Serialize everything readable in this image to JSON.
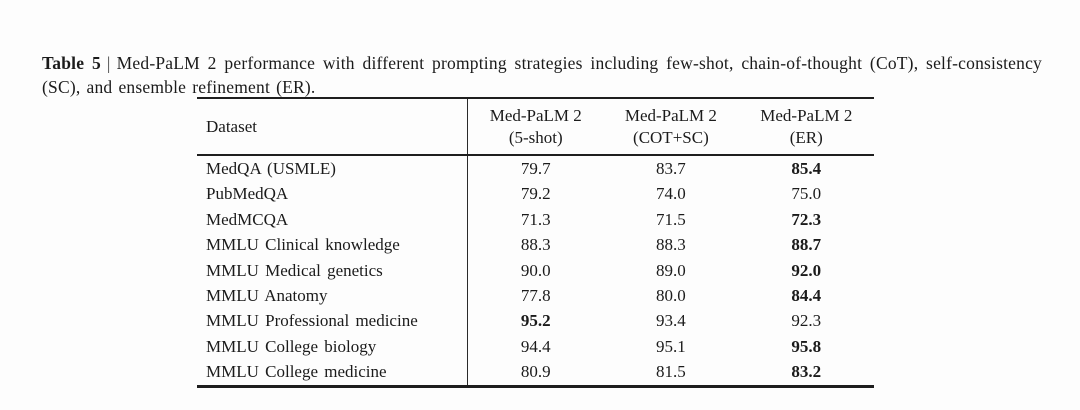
{
  "caption": {
    "label": "Table 5",
    "separator": "|",
    "text": "Med-PaLM 2 performance with different prompting strategies including few-shot, chain-of-thought (CoT), self-consistency (SC), and ensemble refinement (ER)."
  },
  "table": {
    "header": {
      "dataset_label": "Dataset",
      "columns": [
        {
          "line1": "Med-PaLM 2",
          "line2": "(5-shot)"
        },
        {
          "line1": "Med-PaLM 2",
          "line2": "(COT+SC)"
        },
        {
          "line1": "Med-PaLM 2",
          "line2": "(ER)"
        }
      ]
    },
    "rows": [
      {
        "dataset": "MedQA (USMLE)",
        "values": [
          {
            "text": "79.7",
            "bold": false
          },
          {
            "text": "83.7",
            "bold": false
          },
          {
            "text": "85.4",
            "bold": true
          }
        ]
      },
      {
        "dataset": "PubMedQA",
        "values": [
          {
            "text": "79.2",
            "bold": false
          },
          {
            "text": "74.0",
            "bold": false
          },
          {
            "text": "75.0",
            "bold": false
          }
        ]
      },
      {
        "dataset": "MedMCQA",
        "values": [
          {
            "text": "71.3",
            "bold": false
          },
          {
            "text": "71.5",
            "bold": false
          },
          {
            "text": "72.3",
            "bold": true
          }
        ]
      },
      {
        "dataset": "MMLU Clinical knowledge",
        "values": [
          {
            "text": "88.3",
            "bold": false
          },
          {
            "text": "88.3",
            "bold": false
          },
          {
            "text": "88.7",
            "bold": true
          }
        ]
      },
      {
        "dataset": "MMLU Medical genetics",
        "values": [
          {
            "text": "90.0",
            "bold": false
          },
          {
            "text": "89.0",
            "bold": false
          },
          {
            "text": "92.0",
            "bold": true
          }
        ]
      },
      {
        "dataset": "MMLU Anatomy",
        "values": [
          {
            "text": "77.8",
            "bold": false
          },
          {
            "text": "80.0",
            "bold": false
          },
          {
            "text": "84.4",
            "bold": true
          }
        ]
      },
      {
        "dataset": "MMLU Professional medicine",
        "values": [
          {
            "text": "95.2",
            "bold": true
          },
          {
            "text": "93.4",
            "bold": false
          },
          {
            "text": "92.3",
            "bold": false
          }
        ]
      },
      {
        "dataset": "MMLU College biology",
        "values": [
          {
            "text": "94.4",
            "bold": false
          },
          {
            "text": "95.1",
            "bold": false
          },
          {
            "text": "95.8",
            "bold": true
          }
        ]
      },
      {
        "dataset": "MMLU College medicine",
        "values": [
          {
            "text": "80.9",
            "bold": false
          },
          {
            "text": "81.5",
            "bold": false
          },
          {
            "text": "83.2",
            "bold": true
          }
        ]
      }
    ]
  },
  "colors": {
    "text": "#1b1b1b",
    "rule": "#1e1e1e",
    "background": "#fdfdfd"
  }
}
